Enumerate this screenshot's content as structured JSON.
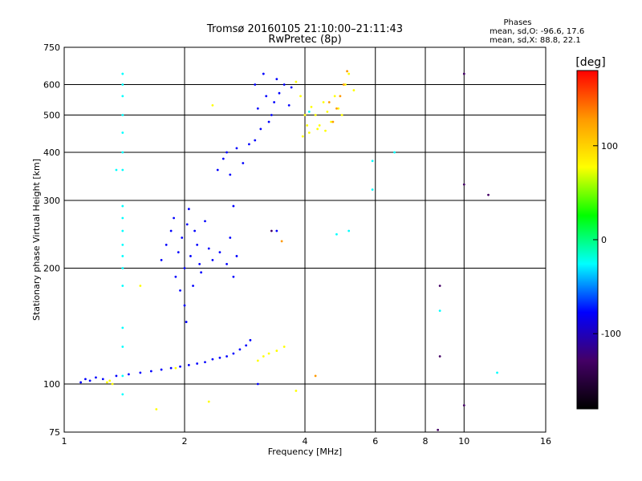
{
  "chart_data": {
    "type": "scatter",
    "title": "Tromsø 20160105 21:10:00–21:11:43",
    "subtitle": "RwPretec (8p)",
    "xlabel": "Frequency [MHz]",
    "ylabel": "Stationary phase Virtual Height [km]",
    "xscale": "log",
    "yscale": "log",
    "xlim": [
      1,
      16
    ],
    "ylim": [
      75,
      750
    ],
    "x_ticks": [
      1,
      2,
      4,
      6,
      8,
      10,
      16
    ],
    "x_tick_labels": [
      "1",
      "2",
      "4",
      "6",
      "8",
      "10",
      "16"
    ],
    "y_ticks": [
      75,
      100,
      200,
      300,
      400,
      500,
      600,
      750
    ],
    "y_tick_labels": [
      "75",
      "100",
      "200",
      "300",
      "400",
      "500",
      "600",
      "750"
    ],
    "grid": true,
    "stats_header": "Phases",
    "stats_lines": [
      "mean, sd,O: -96.6, 17.6",
      "mean, sd,X:  88.8, 22.1"
    ],
    "colorbar": {
      "label": "[deg]",
      "range": [
        -180,
        180
      ],
      "ticks": [
        100,
        0,
        -100
      ],
      "tick_labels": [
        "100",
        "0",
        "-100"
      ],
      "colors": [
        "#ff0000",
        "#ff9900",
        "#ffff00",
        "#00ff00",
        "#00ffff",
        "#0000ff",
        "#440066",
        "#000000"
      ]
    },
    "series": [
      {
        "phase": -100,
        "points": [
          [
            1.1,
            101
          ],
          [
            1.13,
            103
          ],
          [
            1.16,
            102
          ],
          [
            1.2,
            104
          ],
          [
            1.25,
            103
          ],
          [
            1.35,
            105
          ],
          [
            1.45,
            106
          ],
          [
            1.55,
            107
          ],
          [
            1.65,
            108
          ],
          [
            1.75,
            109
          ],
          [
            1.85,
            110
          ],
          [
            1.95,
            111
          ],
          [
            2.05,
            112
          ],
          [
            2.15,
            113
          ],
          [
            2.25,
            114
          ],
          [
            2.35,
            116
          ],
          [
            2.45,
            117
          ],
          [
            2.55,
            118
          ],
          [
            2.65,
            120
          ],
          [
            2.75,
            123
          ],
          [
            2.85,
            126
          ],
          [
            2.92,
            130
          ],
          [
            1.75,
            210
          ],
          [
            1.8,
            230
          ],
          [
            1.85,
            250
          ],
          [
            1.88,
            270
          ],
          [
            1.9,
            190
          ],
          [
            1.93,
            220
          ],
          [
            1.95,
            175
          ],
          [
            1.97,
            240
          ],
          [
            2.0,
            200
          ],
          [
            2.0,
            160
          ],
          [
            2.02,
            145
          ],
          [
            2.03,
            260
          ],
          [
            2.05,
            285
          ],
          [
            2.07,
            215
          ],
          [
            2.1,
            180
          ],
          [
            2.12,
            250
          ],
          [
            2.15,
            230
          ],
          [
            2.18,
            205
          ],
          [
            2.2,
            195
          ],
          [
            2.25,
            265
          ],
          [
            2.3,
            225
          ],
          [
            2.35,
            210
          ],
          [
            2.45,
            220
          ],
          [
            2.55,
            205
          ],
          [
            2.65,
            190
          ],
          [
            2.6,
            240
          ],
          [
            2.7,
            215
          ],
          [
            2.42,
            360
          ],
          [
            2.5,
            385
          ],
          [
            2.55,
            400
          ],
          [
            2.6,
            350
          ],
          [
            2.7,
            410
          ],
          [
            2.8,
            375
          ],
          [
            2.9,
            420
          ],
          [
            3.0,
            430
          ],
          [
            3.0,
            600
          ],
          [
            3.05,
            520
          ],
          [
            3.1,
            460
          ],
          [
            3.15,
            640
          ],
          [
            3.2,
            560
          ],
          [
            3.25,
            480
          ],
          [
            3.3,
            500
          ],
          [
            3.35,
            540
          ],
          [
            3.4,
            620
          ],
          [
            3.45,
            570
          ],
          [
            3.55,
            600
          ],
          [
            3.65,
            530
          ],
          [
            3.7,
            590
          ],
          [
            3.05,
            100
          ],
          [
            3.4,
            250
          ],
          [
            2.65,
            290
          ]
        ]
      },
      {
        "phase": 100,
        "points": [
          [
            3.8,
            610
          ],
          [
            3.9,
            560
          ],
          [
            4.0,
            500
          ],
          [
            4.05,
            470
          ],
          [
            4.15,
            525
          ],
          [
            4.25,
            500
          ],
          [
            4.35,
            470
          ],
          [
            4.45,
            540
          ],
          [
            4.55,
            510
          ],
          [
            4.65,
            480
          ],
          [
            4.75,
            560
          ],
          [
            4.85,
            520
          ],
          [
            4.95,
            500
          ],
          [
            5.05,
            600
          ],
          [
            5.15,
            640
          ],
          [
            5.3,
            580
          ],
          [
            3.95,
            440
          ],
          [
            4.1,
            450
          ],
          [
            4.3,
            460
          ],
          [
            4.5,
            455
          ],
          [
            1.28,
            101
          ],
          [
            1.3,
            102
          ],
          [
            1.32,
            100
          ],
          [
            3.05,
            115
          ],
          [
            3.15,
            118
          ],
          [
            3.25,
            120
          ],
          [
            3.4,
            122
          ],
          [
            3.55,
            125
          ],
          [
            2.35,
            530
          ],
          [
            2.3,
            90
          ],
          [
            1.9,
            110
          ],
          [
            3.8,
            96
          ],
          [
            1.7,
            86
          ],
          [
            1.55,
            180
          ]
        ]
      },
      {
        "phase": 150,
        "points": [
          [
            4.8,
            520
          ],
          [
            4.9,
            560
          ],
          [
            5.0,
            600
          ],
          [
            4.7,
            480
          ],
          [
            5.1,
            650
          ],
          [
            4.6,
            540
          ],
          [
            3.5,
            235
          ],
          [
            4.25,
            105
          ]
        ]
      },
      {
        "phase": 0,
        "points": [
          [
            1.4,
            640
          ],
          [
            1.4,
            600
          ],
          [
            1.4,
            560
          ],
          [
            1.4,
            500
          ],
          [
            1.4,
            450
          ],
          [
            1.4,
            400
          ],
          [
            1.4,
            360
          ],
          [
            1.4,
            290
          ],
          [
            1.4,
            270
          ],
          [
            1.4,
            250
          ],
          [
            1.4,
            230
          ],
          [
            1.4,
            215
          ],
          [
            1.4,
            200
          ],
          [
            1.4,
            180
          ],
          [
            1.4,
            140
          ],
          [
            1.4,
            125
          ],
          [
            1.4,
            105
          ],
          [
            1.4,
            94
          ],
          [
            1.35,
            360
          ],
          [
            5.9,
            380
          ],
          [
            5.9,
            320
          ],
          [
            6.7,
            400
          ],
          [
            8.7,
            155
          ],
          [
            12.1,
            107
          ],
          [
            4.8,
            245
          ],
          [
            5.15,
            250
          ],
          [
            4.1,
            510
          ]
        ]
      },
      {
        "phase": -140,
        "points": [
          [
            8.7,
            180
          ],
          [
            8.7,
            118
          ],
          [
            8.6,
            76
          ],
          [
            10.0,
            640
          ],
          [
            10.0,
            330
          ],
          [
            10.0,
            88
          ],
          [
            11.5,
            310
          ],
          [
            3.3,
            250
          ]
        ]
      }
    ]
  }
}
